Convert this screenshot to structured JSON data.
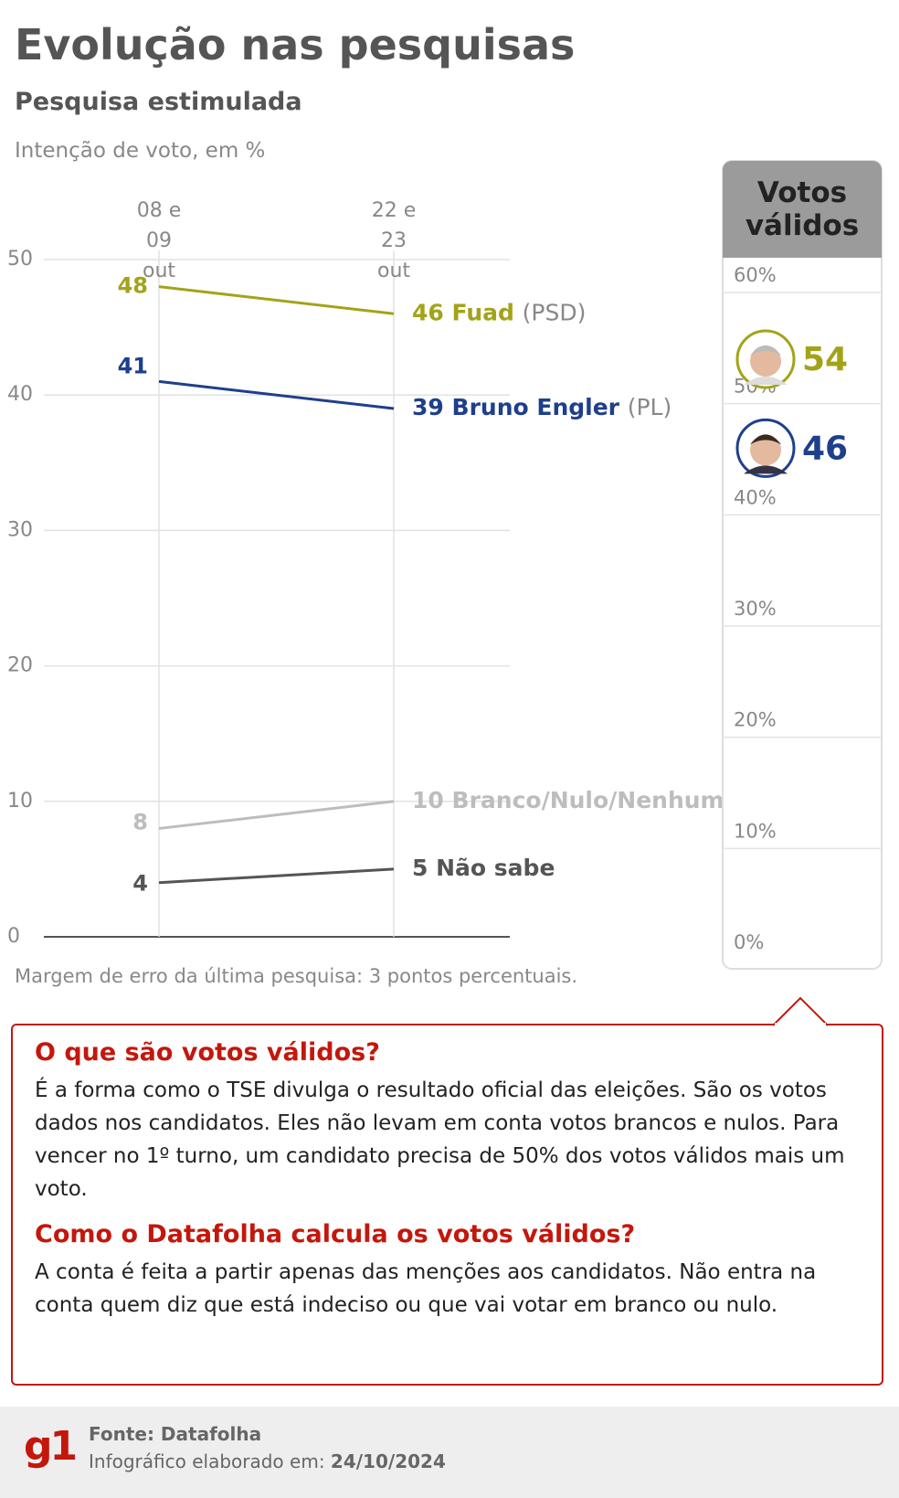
{
  "title": "Evolução nas pesquisas",
  "subtitle": "Pesquisa estimulada",
  "chart_data": [
    {
      "type": "line",
      "y_label": "Intenção de voto, em %",
      "categories": [
        "08 e 09 out",
        "22 e 23 out"
      ],
      "series": [
        {
          "name": "Fuad",
          "party": "(PSD)",
          "color": "#a3a31a",
          "values": [
            48,
            46
          ]
        },
        {
          "name": "Bruno Engler",
          "party": "(PL)",
          "color": "#1e3f8c",
          "values": [
            41,
            39
          ]
        },
        {
          "name": "Branco/Nulo/Nenhum",
          "color": "#bdbdbd",
          "values": [
            8,
            10
          ]
        },
        {
          "name": "Não sabe",
          "color": "#555555",
          "values": [
            4,
            5
          ]
        }
      ],
      "ylim": [
        0,
        50
      ],
      "yticks": [
        0,
        10,
        20,
        30,
        40,
        50
      ],
      "grid": true,
      "note": "Margem de erro da última pesquisa: 3 pontos percentuais."
    },
    {
      "type": "dot",
      "title": "Votos válidos",
      "series": [
        {
          "color": "#a3a31a",
          "values": [
            54
          ]
        },
        {
          "color": "#1e3f8c",
          "values": [
            46
          ]
        }
      ],
      "ylim": [
        0,
        60
      ],
      "yticks": [
        {
          "value": 0,
          "label": "0%"
        },
        {
          "value": 10,
          "label": "10%"
        },
        {
          "value": 20,
          "label": "20%"
        },
        {
          "value": 30,
          "label": "30%"
        },
        {
          "value": 40,
          "label": "40%"
        },
        {
          "value": 50,
          "label": "50%"
        },
        {
          "value": 60,
          "label": "60%"
        }
      ],
      "grid": true
    }
  ],
  "info": {
    "sections": [
      {
        "heading": "O que são votos válidos?",
        "text": "É a forma como o TSE divulga o resultado oficial das eleições. São os votos dados nos candidatos. Eles não levam em conta votos brancos e nulos. Para vencer no 1º turno, um candidato precisa de 50% dos votos válidos mais um voto."
      },
      {
        "heading": "Como o Datafolha calcula os votos válidos?",
        "text": "A conta é feita a partir apenas das menções aos candidatos. Não entra na conta quem diz que está indeciso ou que vai votar em branco ou nulo."
      }
    ]
  },
  "footer": {
    "logo": "g1",
    "source": "Fonte: Datafolha",
    "date_label": "Infográfico elaborado em:",
    "date": "24/10/2024"
  }
}
